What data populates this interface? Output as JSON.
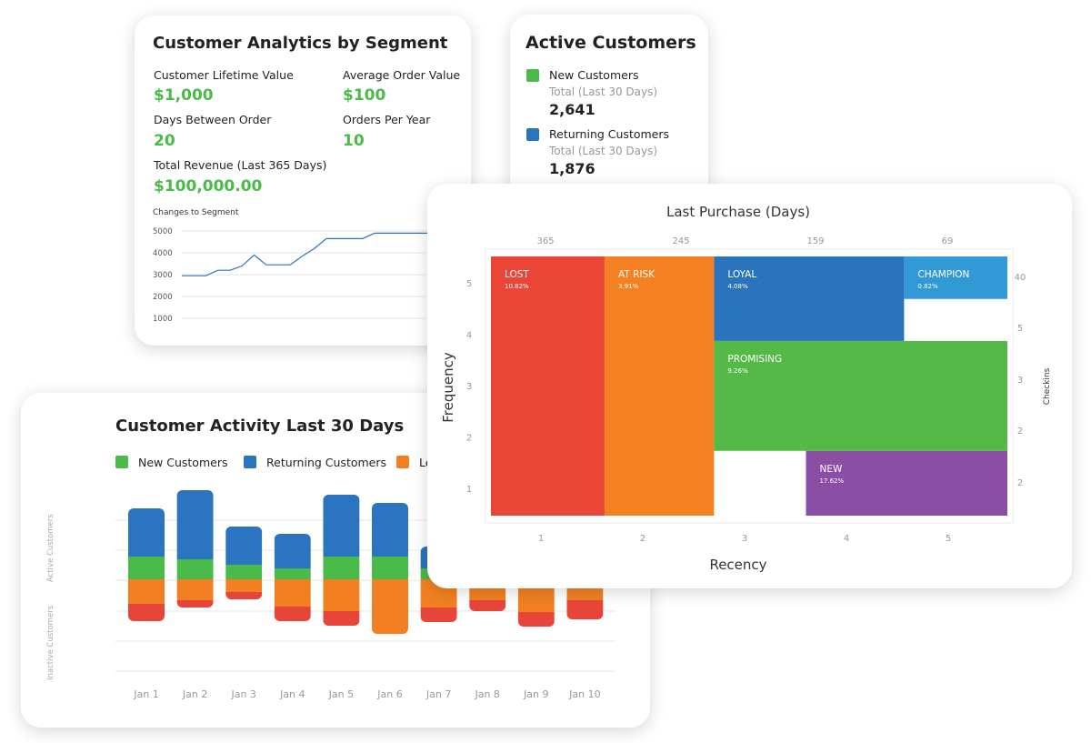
{
  "segment_card": {
    "title": "Customer Analytics by Segment",
    "metrics": [
      {
        "label": "Customer Lifetime Value",
        "value": "$1,000"
      },
      {
        "label": "Average Order Value",
        "value": "$100"
      },
      {
        "label": "Days Between Order",
        "value": "20"
      },
      {
        "label": "Orders Per Year",
        "value": "10"
      },
      {
        "label": "Total Revenue (Last 365 Days)",
        "value": "$100,000.00"
      }
    ],
    "mini_chart_label": "Changes to Segment"
  },
  "active_card": {
    "title": "Active Customers",
    "items": [
      {
        "label": "New Customers",
        "sub": "Total (Last 30 Days)",
        "value": "2,641",
        "color": "#4aba48"
      },
      {
        "label": "Returning Customers",
        "sub": "Total (Last 30 Days)",
        "value": "1,876",
        "color": "#2b74c0"
      }
    ]
  },
  "activity_card": {
    "title": "Customer Activity Last 30 Days",
    "legend": [
      {
        "label": "New Customers",
        "color": "#4aba48"
      },
      {
        "label": "Returning Customers",
        "color": "#2b74c0"
      },
      {
        "label": "Le",
        "color": "#f28022"
      }
    ],
    "y_label_top": "Active Customers",
    "y_label_bottom": "Inactive Customers"
  },
  "rfm_card": {
    "title": "Last Purchase (Days)",
    "xlabel": "Recency",
    "ylabel": "Frequency",
    "right_label": "Checkins"
  },
  "chart_data": [
    {
      "type": "line",
      "title": "Changes to Segment",
      "yticks": [
        1000,
        2000,
        3000,
        4000,
        5000
      ],
      "ylim": [
        1000,
        5000
      ],
      "x": [
        1,
        2,
        3,
        4,
        5,
        6,
        7,
        8,
        9,
        10,
        11,
        12,
        13,
        14,
        15,
        16,
        17,
        18,
        19,
        20,
        21,
        22,
        23,
        24,
        25
      ],
      "values": [
        2950,
        2950,
        2950,
        3200,
        3200,
        3400,
        3900,
        3450,
        3450,
        3450,
        3850,
        4200,
        4650,
        4650,
        4650,
        4650,
        4900,
        4900,
        4900,
        4900,
        4900,
        4900,
        4900,
        4900,
        4900
      ],
      "grid": true,
      "color": "#2b74c0"
    },
    {
      "type": "bar",
      "title": "Customer Activity Last 30 Days",
      "categories": [
        "Jan 1",
        "Jan 2",
        "Jan 3",
        "Jan 4",
        "Jan 5",
        "Jan 6",
        "Jan 7",
        "Jan 8",
        "Jan 9",
        "Jan 10"
      ],
      "series": [
        {
          "name": "Returning Customers",
          "color": "#2b74c0",
          "values": [
            53,
            76,
            42,
            38,
            68,
            59,
            24,
            0,
            0,
            0
          ]
        },
        {
          "name": "New Customers",
          "color": "#4aba48",
          "values": [
            25,
            22,
            16,
            12,
            25,
            25,
            12,
            0,
            0,
            0
          ]
        },
        {
          "name": "Le",
          "color": "#f28022",
          "values": [
            -27,
            -23,
            -14,
            -30,
            -35,
            -60,
            -31,
            -23,
            -36,
            -23
          ]
        },
        {
          "name": "",
          "color": "#e8453a",
          "values": [
            -19,
            -8,
            -8,
            -16,
            -16,
            0,
            -16,
            -12,
            -16,
            -21
          ]
        }
      ],
      "grid": true,
      "legend": "top"
    },
    {
      "type": "heatmap",
      "title": "Last Purchase (Days)",
      "xlabel": "Recency",
      "ylabel": "Frequency",
      "x_ticks": [
        "1",
        "2",
        "3",
        "4",
        "5"
      ],
      "y_ticks": [
        "5",
        "4",
        "3",
        "2",
        "1"
      ],
      "top_ticks": [
        "365",
        "245",
        "159",
        "69"
      ],
      "right_ticks": [
        "40",
        "5",
        "3",
        "2",
        "2"
      ],
      "right_label": "Checkins",
      "xlim": [
        0.5,
        5.5
      ],
      "ylim": [
        0.5,
        5.5
      ],
      "segments": [
        {
          "name": "LOST",
          "pct": "10.82%",
          "color": "#ea4638",
          "x0": 0.5,
          "x1": 1.6,
          "y0": 0.5,
          "y1": 5.5
        },
        {
          "name": "AT RISK",
          "pct": "3.91%",
          "color": "#f38021",
          "x0": 1.6,
          "x1": 2.66,
          "y0": 0.5,
          "y1": 5.5
        },
        {
          "name": "LOYAL",
          "pct": "4.08%",
          "color": "#2a74bb",
          "x0": 2.66,
          "x1": 4.5,
          "y0": 3.87,
          "y1": 5.5
        },
        {
          "name": "CHAMPION",
          "pct": "0.82%",
          "color": "#3299d7",
          "x0": 4.5,
          "x1": 5.5,
          "y0": 4.68,
          "y1": 5.5
        },
        {
          "name": "PROMISING",
          "pct": "9.26%",
          "color": "#54b947",
          "x0": 2.66,
          "x1": 5.5,
          "y0": 1.75,
          "y1": 3.87
        },
        {
          "name": "NEW",
          "pct": "17.62%",
          "color": "#8a4ea4",
          "x0": 3.55,
          "x1": 5.5,
          "y0": 0.5,
          "y1": 1.75
        }
      ]
    }
  ]
}
